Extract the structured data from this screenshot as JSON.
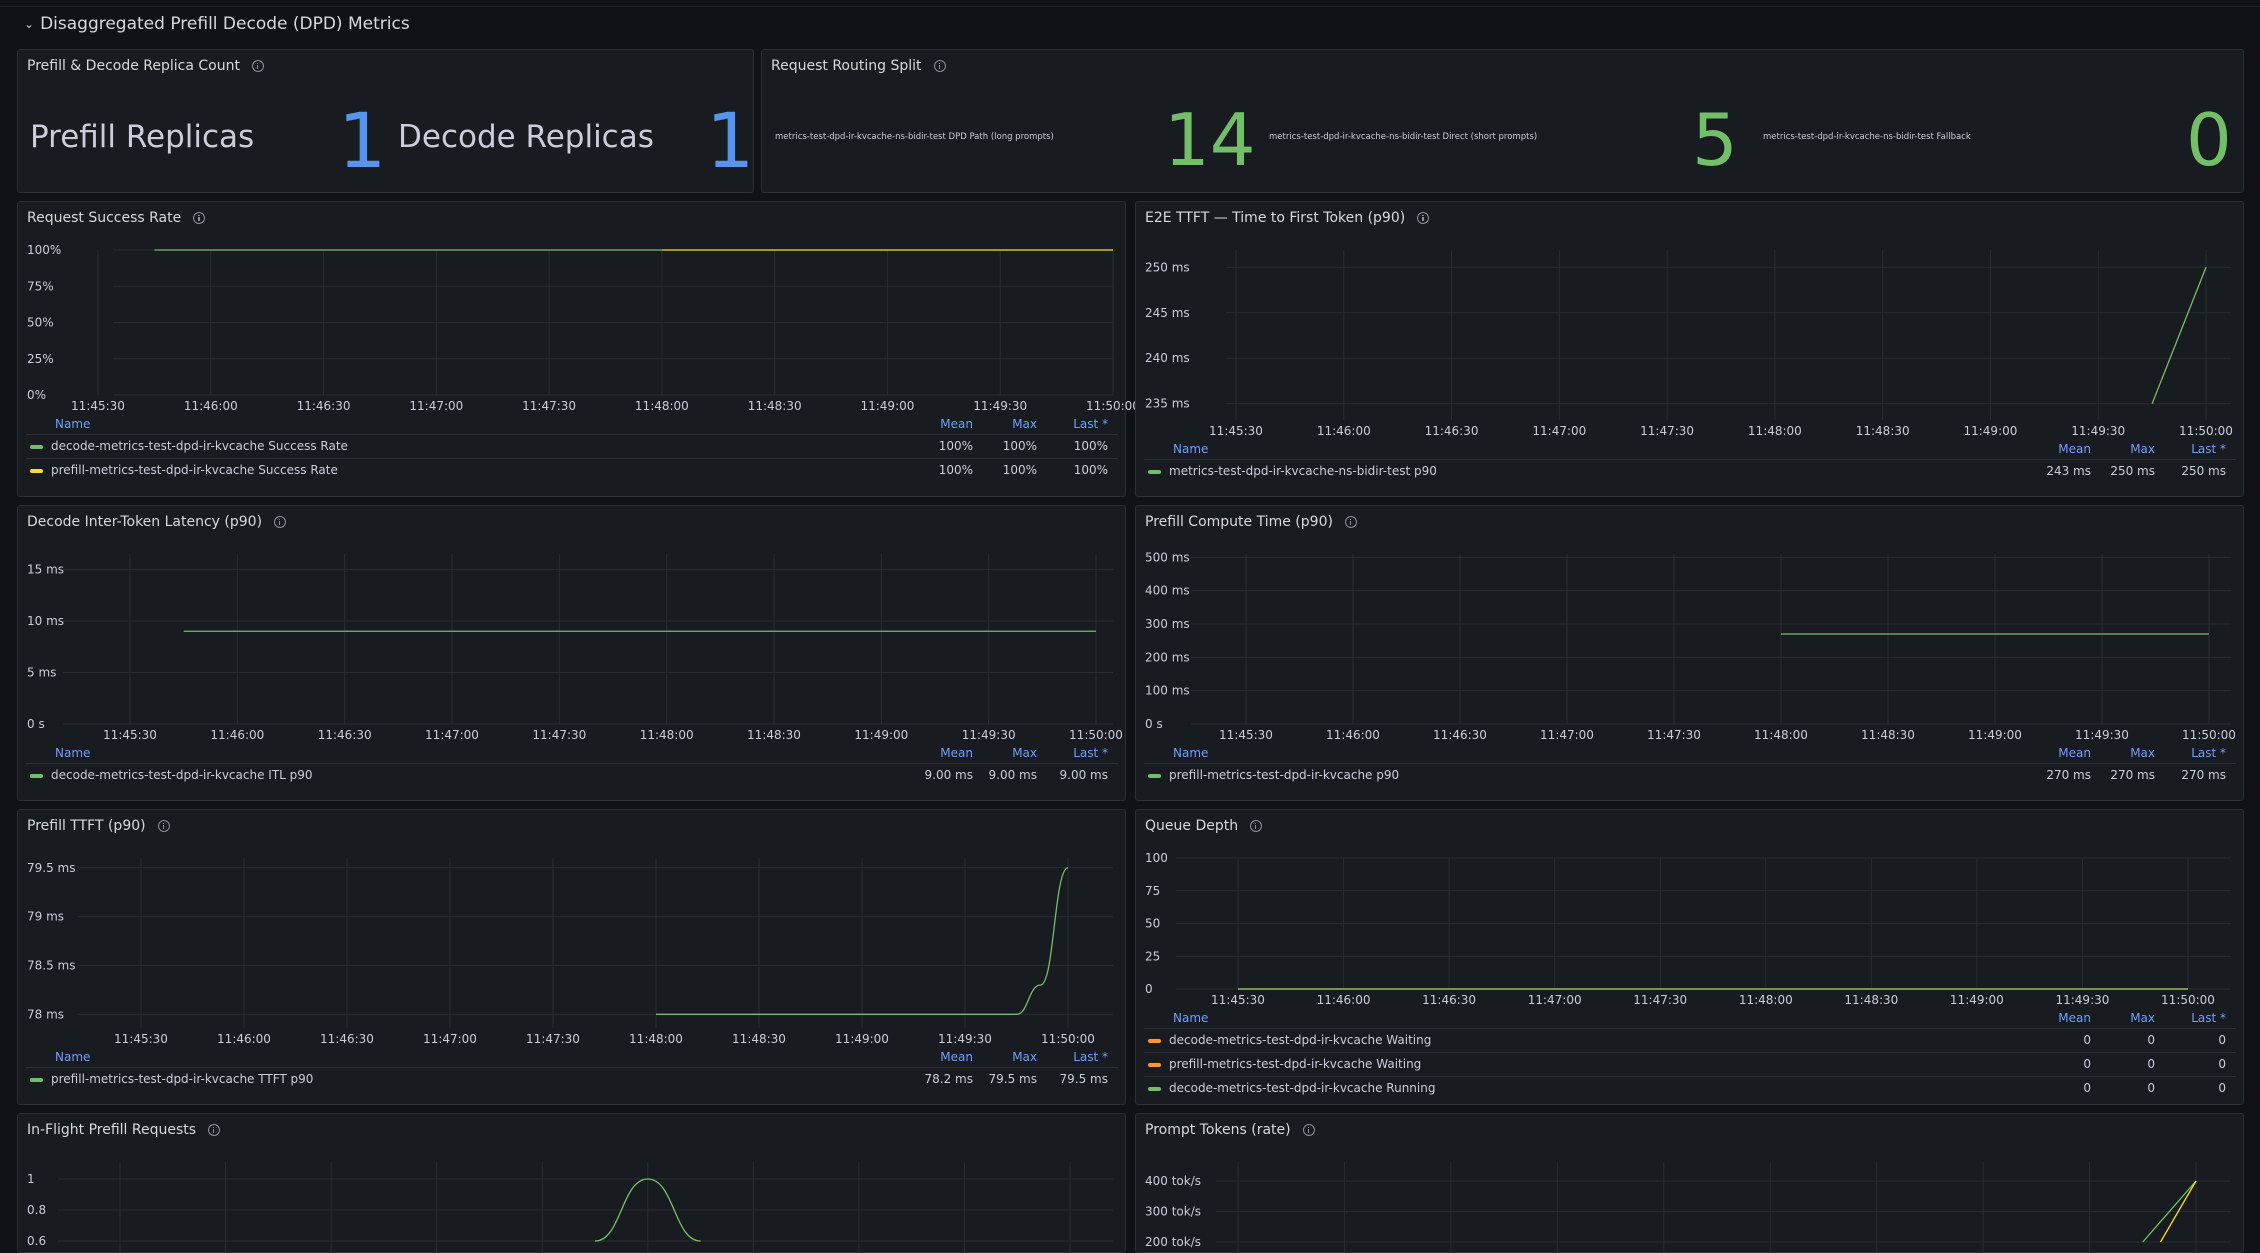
{
  "row": {
    "title": "Disaggregated Prefill Decode (DPD) Metrics"
  },
  "colors": {
    "green": "#73bf69",
    "yellow": "#fade2a",
    "orange": "#ff9830",
    "blue": "#5794f2",
    "grid": "#2a2d33",
    "axis": "#ccccdc",
    "legendHead": "#6e9fff"
  },
  "panels": {
    "replicas": {
      "title": "Prefill & Decode Replica Count",
      "stats": [
        {
          "label": "Prefill Replicas",
          "value": "1"
        },
        {
          "label": "Decode Replicas",
          "value": "1"
        }
      ]
    },
    "routing": {
      "title": "Request Routing Split",
      "stats": [
        {
          "label": "metrics-test-dpd-ir-kvcache-ns-bidir-test DPD Path (long prompts)",
          "value": "14"
        },
        {
          "label": "metrics-test-dpd-ir-kvcache-ns-bidir-test Direct (short prompts)",
          "value": "5"
        },
        {
          "label": "metrics-test-dpd-ir-kvcache-ns-bidir-test Fallback",
          "value": "0"
        }
      ]
    },
    "success": {
      "title": "Request Success Rate"
    },
    "e2e": {
      "title": "E2E TTFT — Time to First Token (p90)"
    },
    "itl": {
      "title": "Decode Inter-Token Latency (p90)"
    },
    "prefill_compute": {
      "title": "Prefill Compute Time (p90)"
    },
    "prefill_ttft": {
      "title": "Prefill TTFT (p90)"
    },
    "queue": {
      "title": "Queue Depth"
    },
    "inflight": {
      "title": "In-Flight Prefill Requests"
    },
    "prompt_tokens": {
      "title": "Prompt Tokens (rate)"
    }
  },
  "legend_headers": {
    "name": "Name",
    "mean": "Mean",
    "max": "Max",
    "last": "Last *"
  },
  "chart_data": [
    {
      "id": "success",
      "type": "line",
      "x": [
        "11:45:30",
        "11:46:00",
        "11:46:30",
        "11:47:00",
        "11:47:30",
        "11:48:00",
        "11:48:30",
        "11:49:00",
        "11:49:30",
        "11:50:00"
      ],
      "yticks": [
        "0%",
        "25%",
        "50%",
        "75%",
        "100%"
      ],
      "ylim": [
        0,
        100
      ],
      "series": [
        {
          "name": "decode-metrics-test-dpd-ir-kvcache Success Rate",
          "color": "green",
          "points": [
            [
              "11:45:45",
              100
            ],
            [
              "11:48:00",
              100
            ]
          ],
          "mean": "100%",
          "max": "100%",
          "last": "100%"
        },
        {
          "name": "prefill-metrics-test-dpd-ir-kvcache Success Rate",
          "color": "yellow",
          "points": [
            [
              "11:48:00",
              100
            ],
            [
              "11:50:00",
              100
            ]
          ],
          "mean": "100%",
          "max": "100%",
          "last": "100%"
        }
      ]
    },
    {
      "id": "e2e",
      "type": "line",
      "x": [
        "11:45:30",
        "11:46:00",
        "11:46:30",
        "11:47:00",
        "11:47:30",
        "11:48:00",
        "11:48:30",
        "11:49:00",
        "11:49:30",
        "11:50:00"
      ],
      "yticks": [
        "235 ms",
        "240 ms",
        "245 ms",
        "250 ms"
      ],
      "ylim": [
        233,
        252
      ],
      "series": [
        {
          "name": "metrics-test-dpd-ir-kvcache-ns-bidir-test p90",
          "color": "green",
          "points": [
            [
              "11:49:45",
              235
            ],
            [
              "11:50:00",
              250
            ]
          ],
          "mean": "243 ms",
          "max": "250 ms",
          "last": "250 ms"
        }
      ]
    },
    {
      "id": "itl",
      "type": "line",
      "x": [
        "11:45:30",
        "11:46:00",
        "11:46:30",
        "11:47:00",
        "11:47:30",
        "11:48:00",
        "11:48:30",
        "11:49:00",
        "11:49:30",
        "11:50:00"
      ],
      "yticks": [
        "0 s",
        "5 ms",
        "10 ms",
        "15 ms"
      ],
      "ylim": [
        0,
        16.5
      ],
      "series": [
        {
          "name": "decode-metrics-test-dpd-ir-kvcache ITL p90",
          "color": "green",
          "points": [
            [
              "11:45:45",
              9
            ],
            [
              "11:50:00",
              9
            ]
          ],
          "mean": "9.00 ms",
          "max": "9.00 ms",
          "last": "9.00 ms"
        }
      ]
    },
    {
      "id": "prefill_compute",
      "type": "line",
      "x": [
        "11:45:30",
        "11:46:00",
        "11:46:30",
        "11:47:00",
        "11:47:30",
        "11:48:00",
        "11:48:30",
        "11:49:00",
        "11:49:30",
        "11:50:00"
      ],
      "yticks": [
        "0 s",
        "100 ms",
        "200 ms",
        "300 ms",
        "400 ms",
        "500 ms"
      ],
      "ylim": [
        0,
        510
      ],
      "series": [
        {
          "name": "prefill-metrics-test-dpd-ir-kvcache p90",
          "color": "green",
          "points": [
            [
              "11:48:00",
              270
            ],
            [
              "11:50:00",
              270
            ]
          ],
          "mean": "270 ms",
          "max": "270 ms",
          "last": "270 ms"
        }
      ]
    },
    {
      "id": "prefill_ttft",
      "type": "line",
      "x": [
        "11:45:30",
        "11:46:00",
        "11:46:30",
        "11:47:00",
        "11:47:30",
        "11:48:00",
        "11:48:30",
        "11:49:00",
        "11:49:30",
        "11:50:00"
      ],
      "yticks": [
        "78 ms",
        "78.5 ms",
        "79 ms",
        "79.5 ms"
      ],
      "ylim": [
        77.85,
        79.6
      ],
      "series": [
        {
          "name": "prefill-metrics-test-dpd-ir-kvcache TTFT p90",
          "color": "green",
          "points": [
            [
              "11:48:00",
              78
            ],
            [
              "11:49:45",
              78
            ],
            [
              "11:49:52",
              78.3
            ],
            [
              "11:50:00",
              79.5
            ]
          ],
          "mean": "78.2 ms",
          "max": "79.5 ms",
          "last": "79.5 ms"
        }
      ]
    },
    {
      "id": "queue",
      "type": "line",
      "x": [
        "11:45:30",
        "11:46:00",
        "11:46:30",
        "11:47:00",
        "11:47:30",
        "11:48:00",
        "11:48:30",
        "11:49:00",
        "11:49:30",
        "11:50:00"
      ],
      "yticks": [
        "0",
        "25",
        "50",
        "75",
        "100"
      ],
      "ylim": [
        0,
        100
      ],
      "series": [
        {
          "name": "decode-metrics-test-dpd-ir-kvcache Waiting",
          "color": "orange",
          "points": [
            [
              "11:45:30",
              0
            ],
            [
              "11:50:00",
              0
            ]
          ],
          "mean": "0",
          "max": "0",
          "last": "0"
        },
        {
          "name": "prefill-metrics-test-dpd-ir-kvcache Waiting",
          "color": "orange",
          "points": [
            [
              "11:45:30",
              0
            ],
            [
              "11:50:00",
              0
            ]
          ],
          "mean": "0",
          "max": "0",
          "last": "0"
        },
        {
          "name": "decode-metrics-test-dpd-ir-kvcache Running",
          "color": "green",
          "points": [
            [
              "11:45:30",
              0
            ],
            [
              "11:50:00",
              0
            ]
          ],
          "mean": "0",
          "max": "0",
          "last": "0"
        }
      ]
    },
    {
      "id": "inflight",
      "type": "line",
      "yticks": [
        "0.6",
        "0.8",
        "1"
      ],
      "ylim": [
        0.6,
        1.0
      ],
      "series": [
        {
          "name": "",
          "color": "green",
          "points": [
            [
              "11:47:45",
              0.6
            ],
            [
              "11:48:00",
              1
            ],
            [
              "11:48:15",
              0.6
            ]
          ]
        }
      ]
    },
    {
      "id": "prompt_tokens",
      "type": "line",
      "yticks": [
        "200 tok/s",
        "300 tok/s",
        "400 tok/s"
      ],
      "ylim": [
        200,
        400
      ],
      "series": [
        {
          "name": "",
          "color": "green",
          "points": [
            [
              "11:49:45",
              200
            ],
            [
              "11:50:00",
              400
            ]
          ]
        },
        {
          "name": "",
          "color": "yellow",
          "points": [
            [
              "11:49:50",
              200
            ],
            [
              "11:50:00",
              400
            ]
          ]
        }
      ]
    }
  ]
}
